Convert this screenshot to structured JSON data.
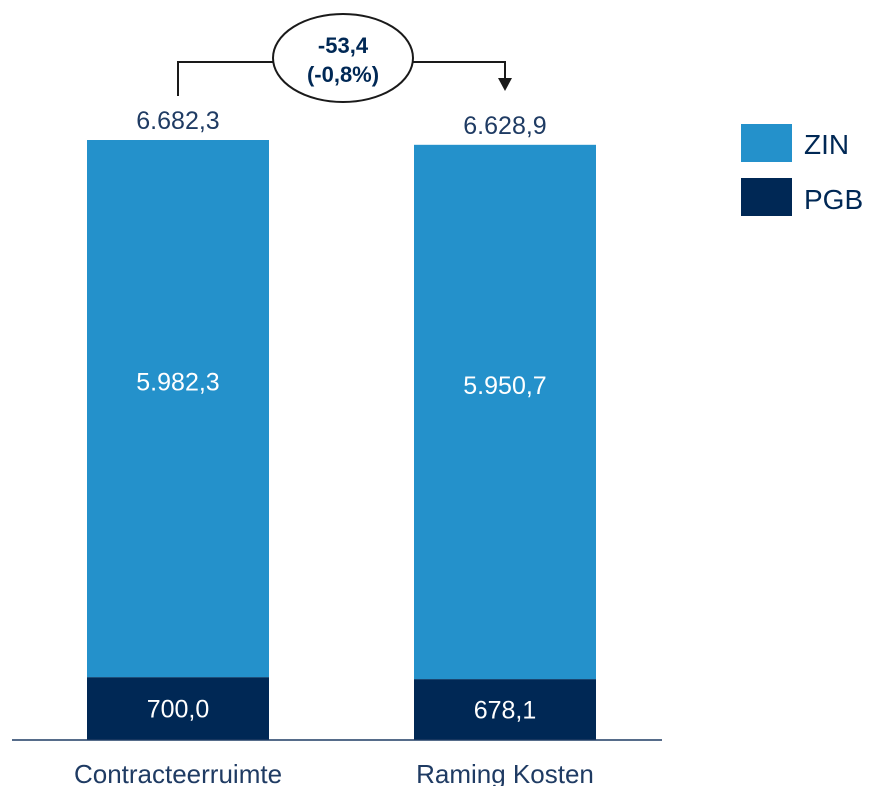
{
  "chart_data": {
    "type": "bar",
    "stacked": true,
    "categories": [
      "Contracteerruimte",
      "Raming Kosten"
    ],
    "series": [
      {
        "name": "PGB",
        "values": [
          700.0,
          678.1
        ],
        "labels": [
          "700,0",
          "678,1"
        ],
        "color": "#002855"
      },
      {
        "name": "ZIN",
        "values": [
          5982.3,
          5950.7
        ],
        "labels": [
          "5.982,3",
          "5.950,7"
        ],
        "color": "#2491cb"
      }
    ],
    "totals": [
      6682.3,
      6628.9
    ],
    "total_labels": [
      "6.682,3",
      "6.628,9"
    ],
    "difference_annotation": {
      "line1": "-53,4",
      "line2": "(-0,8%)"
    },
    "legend_order": [
      "ZIN",
      "PGB"
    ],
    "legend_position": "top-right",
    "ylim": [
      0,
      6682.3
    ],
    "grid": false,
    "title": "",
    "xlabel": "",
    "ylabel": ""
  }
}
